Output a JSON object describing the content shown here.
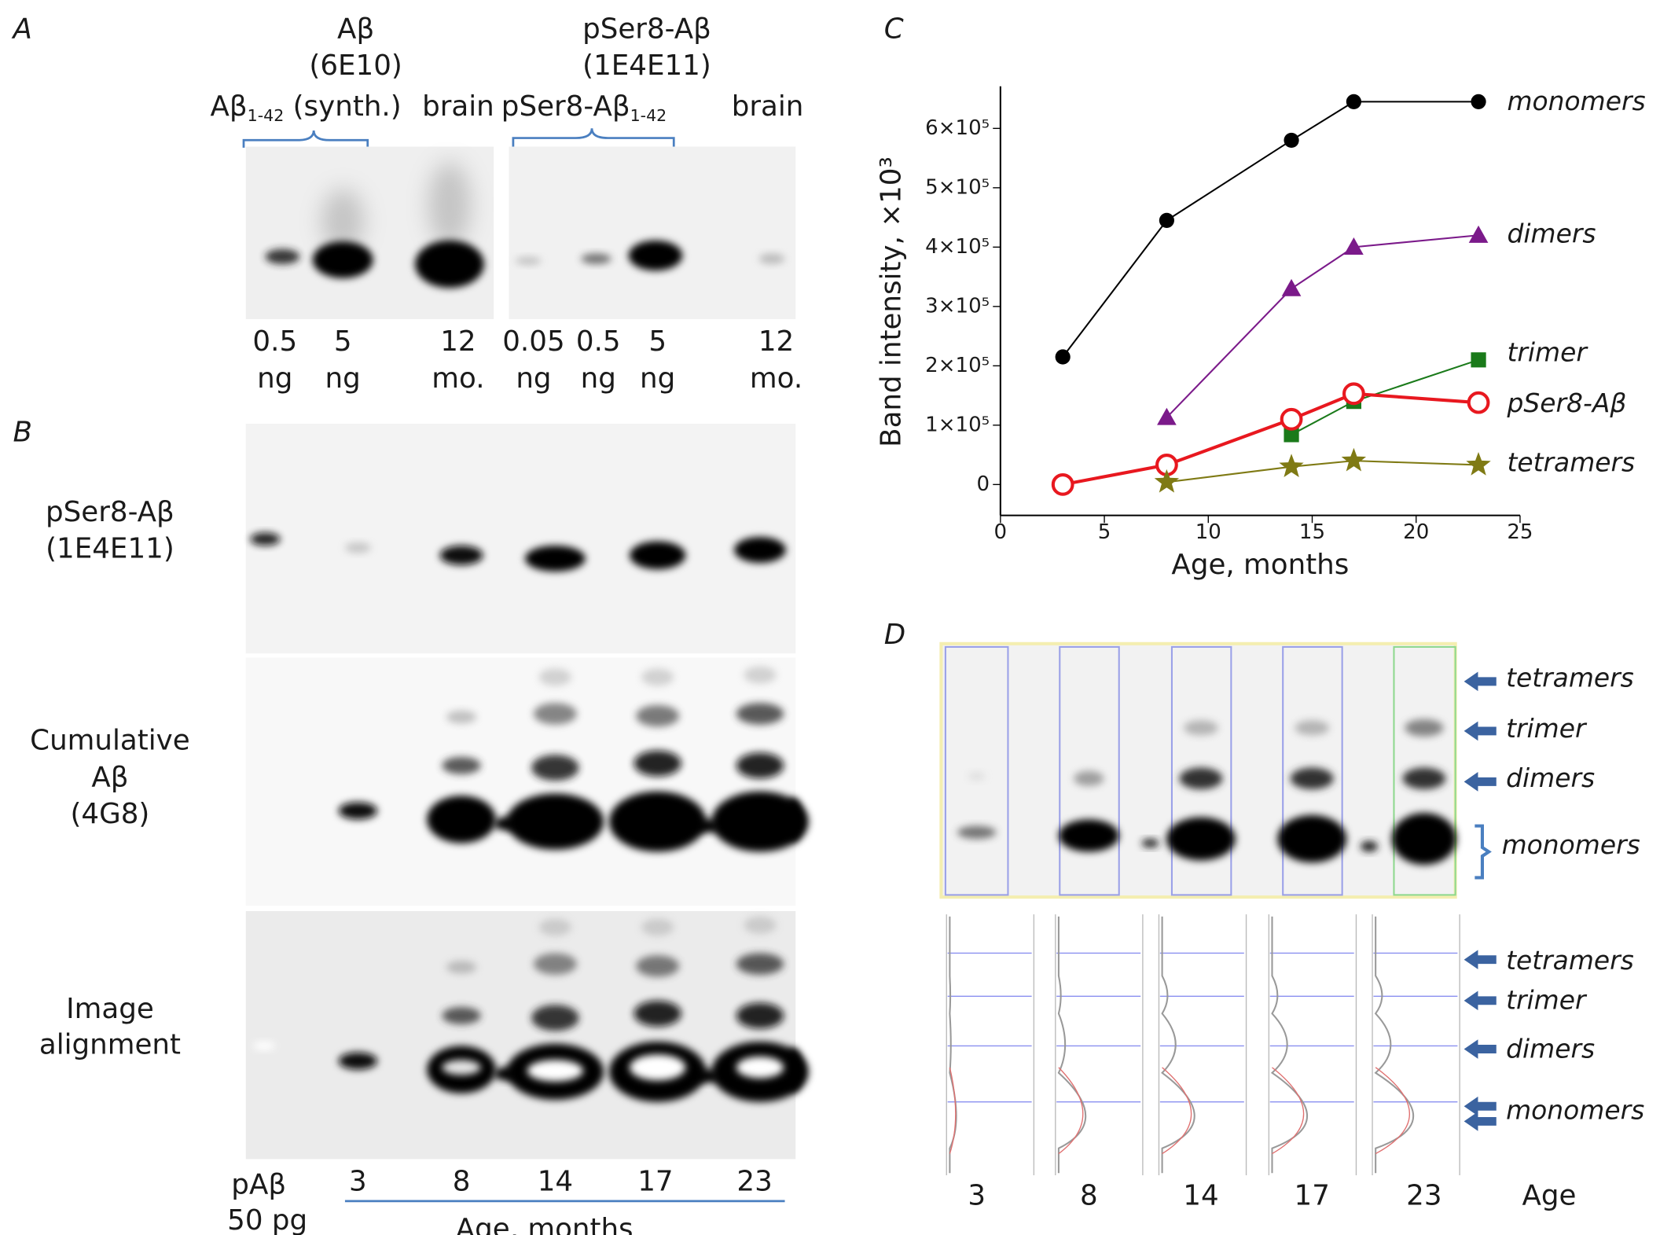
{
  "panel_a": {
    "label": "A",
    "groups": [
      {
        "title": "Aβ",
        "antibody": "(6E10)"
      },
      {
        "title": "pSer8-Aβ",
        "antibody": "(1E4E11)"
      }
    ],
    "subgroups": [
      {
        "main": "Aβ",
        "sub": "1-42",
        "rest": " (synth.)"
      },
      {
        "main": "pSer8-Aβ",
        "sub": "1-42"
      }
    ],
    "headers": [
      "brain",
      "brain"
    ],
    "lanes": [
      {
        "amount": "0.5",
        "unit": "ng"
      },
      {
        "amount": "5",
        "unit": "ng"
      },
      {
        "amount": "12",
        "unit": "mo."
      },
      {
        "amount": "0.05",
        "unit": "ng"
      },
      {
        "amount": "0.5",
        "unit": "ng"
      },
      {
        "amount": "5",
        "unit": "ng"
      },
      {
        "amount": "12",
        "unit": "mo."
      }
    ]
  },
  "panel_b": {
    "label": "B",
    "rows": [
      [
        "pSer8-Aβ",
        "(1E4E11)"
      ],
      [
        "Cumulative",
        "Aβ",
        "(4G8)"
      ],
      [
        "Image",
        "alignment"
      ]
    ],
    "control": [
      "pAβ",
      "50 pg"
    ],
    "lanes": [
      "3",
      "8",
      "14",
      "17",
      "23"
    ],
    "axis_label": "Age, months"
  },
  "panel_c": {
    "label": "C"
  },
  "chart_data": {
    "type": "line",
    "xlabel": "Age, months",
    "ylabel": "Band intensity, ×10³",
    "x": [
      3,
      8,
      14,
      17,
      23
    ],
    "xlim": [
      0,
      25
    ],
    "xticks": [
      0,
      5,
      10,
      15,
      20,
      25
    ],
    "ylim": [
      -52000,
      671000
    ],
    "yticks": [
      0,
      {
        "value": 100000,
        "label": "1×10⁵"
      },
      {
        "value": 200000,
        "label": "2×10⁵"
      },
      {
        "value": 300000,
        "label": "3×10⁵"
      },
      {
        "value": 400000,
        "label": "4×10⁵"
      },
      {
        "value": 500000,
        "label": "5×10⁵"
      },
      {
        "value": 600000,
        "label": "6×10⁵"
      }
    ],
    "series": [
      {
        "name": "monomers",
        "color": "#000000",
        "marker": "circle",
        "values": [
          215000,
          445000,
          580000,
          645000,
          645000
        ]
      },
      {
        "name": "dimers",
        "color": "#7b1a8a",
        "marker": "triangle",
        "values": [
          null,
          113000,
          330000,
          400000,
          420000
        ]
      },
      {
        "name": "trimer",
        "color": "#1a7a1a",
        "marker": "square",
        "values": [
          null,
          null,
          84000,
          140000,
          210000
        ]
      },
      {
        "name": "pSer8-Aβ",
        "color": "#e8181f",
        "marker": "open-circle",
        "values": [
          0,
          33000,
          110000,
          153000,
          138000
        ]
      },
      {
        "name": "tetramers",
        "color": "#7f7a14",
        "marker": "star",
        "values": [
          null,
          4000,
          30000,
          40000,
          33000
        ]
      }
    ]
  },
  "panel_d": {
    "label": "D",
    "gel_labels": [
      "tetramers",
      "trimer",
      "dimers",
      "monomers"
    ],
    "profile_labels": [
      "tetramers",
      "trimer",
      "dimers",
      "monomers"
    ],
    "lanes": [
      "3",
      "8",
      "14",
      "17",
      "23"
    ],
    "axis_label": "Age"
  }
}
